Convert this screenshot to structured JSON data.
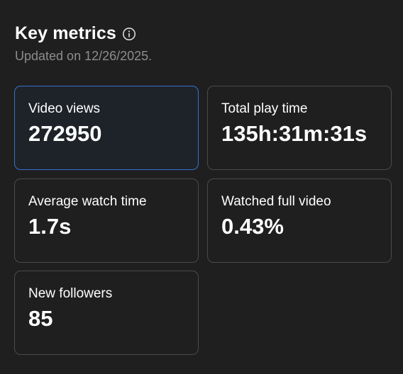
{
  "header": {
    "title": "Key metrics",
    "info_icon": "info-icon",
    "updated": "Updated on 12/26/2025."
  },
  "metrics": [
    {
      "label": "Video views",
      "value": "272950",
      "selected": true
    },
    {
      "label": "Total play time",
      "value": "135h:31m:31s",
      "selected": false
    },
    {
      "label": "Average watch time",
      "value": "1.7s",
      "selected": false
    },
    {
      "label": "Watched full video",
      "value": "0.43%",
      "selected": false
    },
    {
      "label": "New followers",
      "value": "85",
      "selected": false
    }
  ],
  "colors": {
    "background": "#1f1f1f",
    "card_border": "#4a4a4a",
    "selected_border": "#3a6fd0",
    "subtitle": "#8d8d8d"
  }
}
